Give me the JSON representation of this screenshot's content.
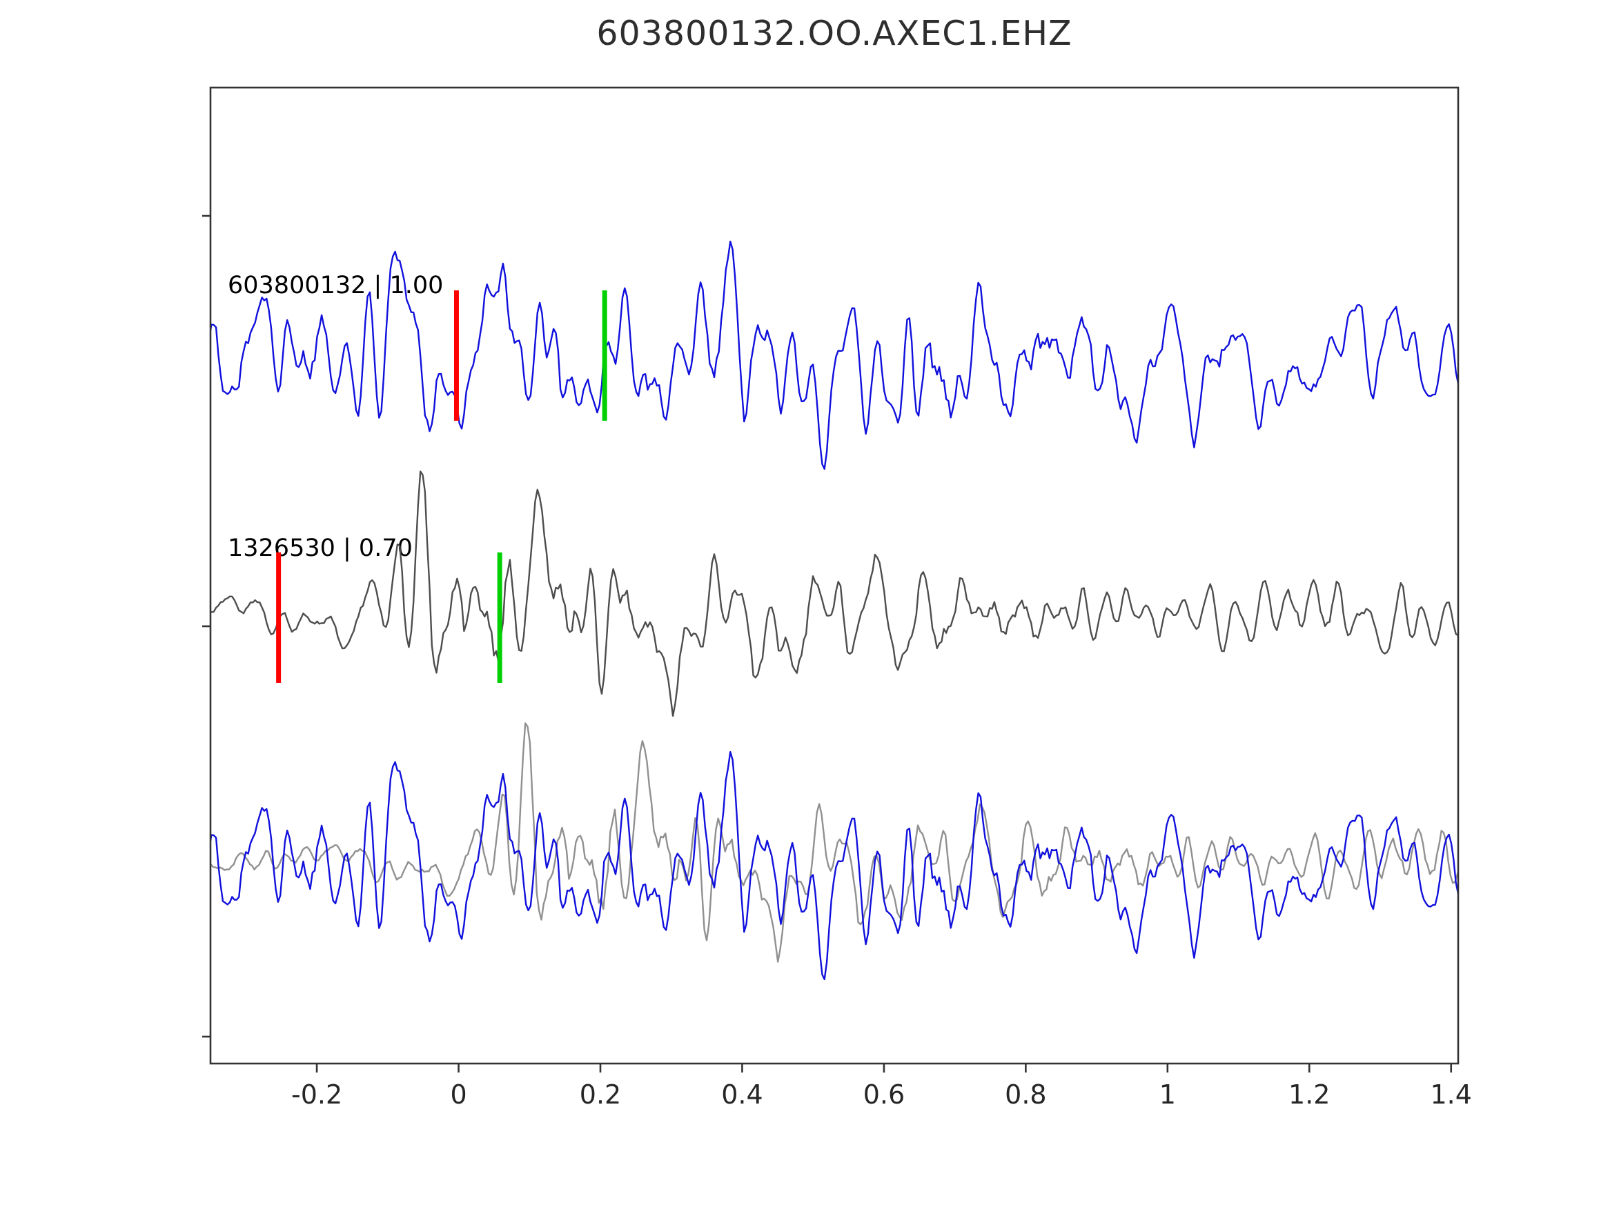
{
  "title": "603800132.OO.AXEC1.EHZ",
  "chart_data": {
    "type": "line",
    "title": "603800132.OO.AXEC1.EHZ",
    "subtitle": "",
    "xlabel": "",
    "ylabel": "",
    "grid": false,
    "legend": "none",
    "xlim": [
      -0.35,
      1.41
    ],
    "xticks": [
      "-0.2",
      "0",
      "0.2",
      "0.4",
      "0.6",
      "0.8",
      "1",
      "1.2",
      "1.4"
    ],
    "xtick_values": [
      -0.2,
      0,
      0.2,
      0.4,
      0.6,
      0.8,
      1,
      1.2,
      1.4
    ],
    "axis_color": "#333333",
    "tick_label_color": "#262626",
    "description": "Three stacked seismic waveform traces: template trace (blue), candidate trace (gray) with correlation picks, and an aligned overlay of both.",
    "traces": [
      {
        "id": "603800132",
        "label": "603800132 | 1.00",
        "correlation": "1.00",
        "color": "#1010dd",
        "row": 0,
        "seed": 101,
        "picks": [
          {
            "type": "reference-pick",
            "color": "#ff0000",
            "x": -0.003
          },
          {
            "type": "correlation-pick",
            "color": "#00d000",
            "x": 0.206
          }
        ],
        "envelope": [
          [
            -0.51,
            0.75
          ],
          [
            -0.2,
            0.8
          ],
          [
            0.1,
            0.95
          ],
          [
            0.14,
            1.0
          ],
          [
            0.3,
            0.85
          ],
          [
            0.6,
            0.8
          ],
          [
            0.9,
            0.72
          ],
          [
            1.2,
            0.65
          ],
          [
            1.41,
            0.62
          ]
        ]
      },
      {
        "id": "1326530",
        "label": "1326530 | 0.70",
        "correlation": "0.70",
        "color": "#4d4d4d",
        "row": 1,
        "seed": 202,
        "picks": [
          {
            "type": "reference-pick",
            "color": "#ff0000",
            "x": -0.254
          },
          {
            "type": "correlation-pick",
            "color": "#00d000",
            "x": 0.058
          }
        ],
        "envelope": [
          [
            -0.51,
            0.18
          ],
          [
            -0.26,
            0.2
          ],
          [
            -0.13,
            0.35
          ],
          [
            -0.06,
            1.0
          ],
          [
            0.05,
            0.95
          ],
          [
            0.2,
            0.8
          ],
          [
            0.4,
            0.75
          ],
          [
            0.65,
            0.5
          ],
          [
            1.0,
            0.4
          ],
          [
            1.41,
            0.38
          ]
        ]
      },
      {
        "id": "overlay",
        "label": "",
        "row": 2,
        "series": [
          {
            "ref": "1326530",
            "color": "#909090",
            "x_shift": 0.148
          },
          {
            "ref": "603800132",
            "color": "#1010dd",
            "x_shift": 0.0
          }
        ]
      }
    ]
  }
}
